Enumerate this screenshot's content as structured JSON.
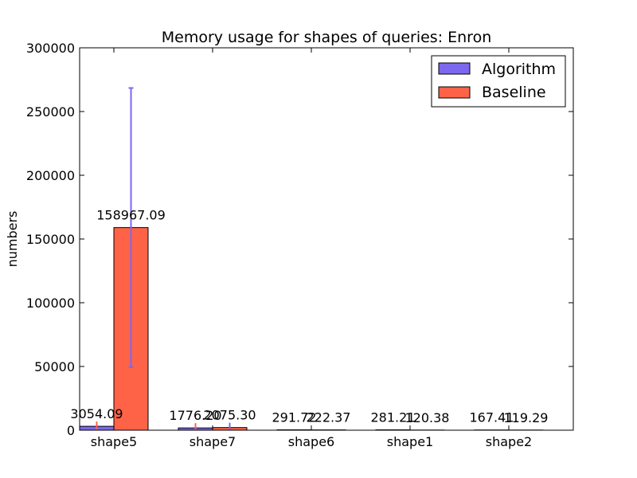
{
  "chart_data": {
    "type": "bar",
    "title": "Memory usage for shapes of queries: Enron",
    "xlabel": "",
    "ylabel": "numbers",
    "ylim": [
      0,
      300000
    ],
    "yticks": [
      0,
      50000,
      100000,
      150000,
      200000,
      250000,
      300000
    ],
    "ytick_labels": [
      "0",
      "50000",
      "100000",
      "150000",
      "200000",
      "250000",
      "300000"
    ],
    "categories": [
      "shape5",
      "shape7",
      "shape6",
      "shape1",
      "shape2"
    ],
    "series": [
      {
        "name": "Algorithm",
        "color": "#7b68ee",
        "values": [
          3054.09,
          1776.2,
          291.72,
          281.21,
          167.41
        ],
        "value_labels": [
          "3054.09",
          "1776.20",
          "291.72",
          "281.21",
          "167.41"
        ],
        "error": [
          null,
          null,
          null,
          null,
          null
        ]
      },
      {
        "name": "Baseline",
        "color": "#ff6347",
        "values": [
          158967.09,
          2075.3,
          222.37,
          120.38,
          119.29
        ],
        "value_labels": [
          "158967.09",
          "2075.30",
          "222.37",
          "120.38",
          "119.29"
        ],
        "error": [
          109500,
          null,
          null,
          null,
          null
        ]
      }
    ],
    "legend_position": "top-right",
    "grid": false
  }
}
